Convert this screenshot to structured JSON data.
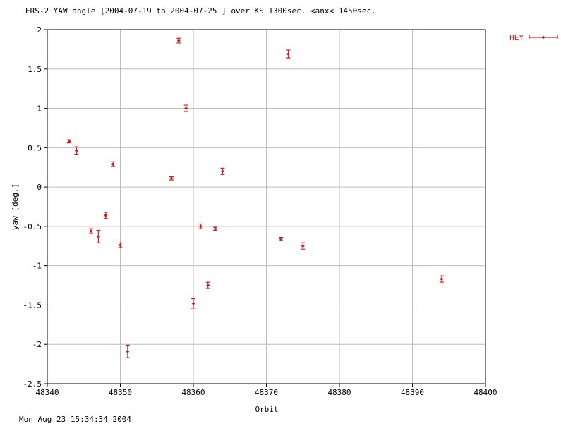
{
  "chart_data": {
    "type": "scatter",
    "title": "ERS-2 YAW angle [2004-07-19 to 2004-07-25 ] over KS 1300sec. <anx< 1450sec.",
    "xlabel": "Orbit",
    "ylabel": "yaw [deg.]",
    "xlim": [
      48340,
      48400
    ],
    "ylim": [
      -2.5,
      2
    ],
    "xticks": [
      48340,
      48350,
      48360,
      48370,
      48380,
      48390,
      48400
    ],
    "yticks": [
      -2.5,
      -2,
      -1.5,
      -1,
      -0.5,
      0,
      0.5,
      1,
      1.5,
      2
    ],
    "grid": true,
    "legend_position": "top-right",
    "series": [
      {
        "name": "HEY",
        "color": "#cc2222",
        "marker": "diamond-with-errorbars",
        "points": [
          {
            "x": 48343,
            "y": 0.58,
            "err": 0.02
          },
          {
            "x": 48344,
            "y": 0.46,
            "err": 0.05
          },
          {
            "x": 48346,
            "y": -0.56,
            "err": 0.03
          },
          {
            "x": 48347,
            "y": -0.63,
            "err": 0.08
          },
          {
            "x": 48348,
            "y": -0.36,
            "err": 0.04
          },
          {
            "x": 48349,
            "y": 0.29,
            "err": 0.03
          },
          {
            "x": 48350,
            "y": -0.74,
            "err": 0.03
          },
          {
            "x": 48351,
            "y": -2.09,
            "err": 0.08
          },
          {
            "x": 48357,
            "y": 0.11,
            "err": 0.02
          },
          {
            "x": 48358,
            "y": 1.86,
            "err": 0.03
          },
          {
            "x": 48359,
            "y": 1.0,
            "err": 0.04
          },
          {
            "x": 48360,
            "y": -1.48,
            "err": 0.06
          },
          {
            "x": 48361,
            "y": -0.5,
            "err": 0.03
          },
          {
            "x": 48362,
            "y": -1.25,
            "err": 0.04
          },
          {
            "x": 48363,
            "y": -0.53,
            "err": 0.02
          },
          {
            "x": 48364,
            "y": 0.2,
            "err": 0.04
          },
          {
            "x": 48372,
            "y": -0.66,
            "err": 0.02
          },
          {
            "x": 48373,
            "y": 1.69,
            "err": 0.05
          },
          {
            "x": 48375,
            "y": -0.75,
            "err": 0.04
          },
          {
            "x": 48394,
            "y": -1.17,
            "err": 0.04
          }
        ]
      }
    ]
  },
  "footer": {
    "timestamp": "Mon Aug 23 15:34:34 2004"
  },
  "colors": {
    "data": "#cc2222",
    "grid": "#bdbdbd",
    "axis": "#000000",
    "text": "#000000"
  }
}
